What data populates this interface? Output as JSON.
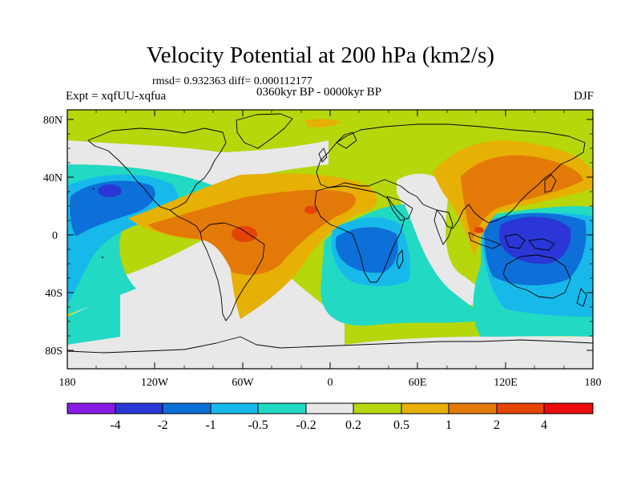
{
  "title": "Velocity Potential at 200 hPa (km2/s)",
  "stats": "rmsd= 0.932363 diff= 0.000112177",
  "experiment": "Expt = xqfUU-xqfua",
  "period": "0360kyr BP - 0000kyr BP",
  "season": "DJF",
  "map": {
    "lat_labels": [
      "80N",
      "40N",
      "0",
      "40S",
      "80S"
    ],
    "lon_labels": [
      "180",
      "120W",
      "60W",
      "0",
      "60E",
      "120E",
      "180"
    ]
  },
  "colorbar": {
    "labels": [
      "-4",
      "-2",
      "-1",
      "-0.5",
      "-0.2",
      "0.2",
      "0.5",
      "1",
      "2",
      "4"
    ],
    "colors": [
      "#8a1be6",
      "#2a37d6",
      "#0d6fd8",
      "#17b9ea",
      "#22d9c4",
      "#e8e8e8",
      "#b5d70c",
      "#e6b004",
      "#e37a08",
      "#e54408",
      "#ea0c0c"
    ]
  }
}
